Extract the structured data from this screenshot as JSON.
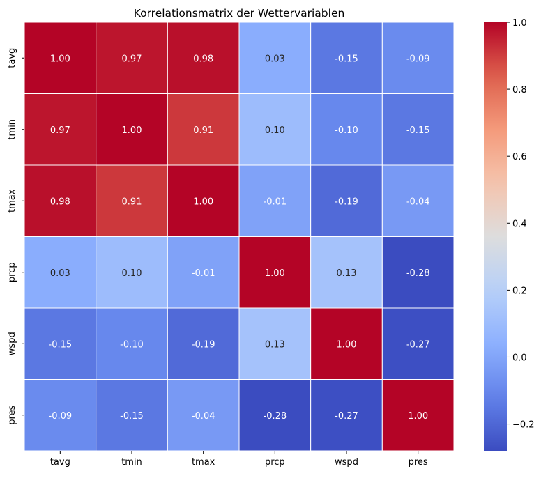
{
  "chart_data": {
    "type": "heatmap",
    "title": "Korrelationsmatrix der Wettervariablen",
    "xlabel": "",
    "ylabel": "",
    "x_categories": [
      "tavg",
      "tmin",
      "tmax",
      "prcp",
      "wspd",
      "pres"
    ],
    "y_categories": [
      "tavg",
      "tmin",
      "tmax",
      "prcp",
      "wspd",
      "pres"
    ],
    "values": [
      [
        1.0,
        0.97,
        0.98,
        0.03,
        -0.15,
        -0.09
      ],
      [
        0.97,
        1.0,
        0.91,
        0.1,
        -0.1,
        -0.15
      ],
      [
        0.98,
        0.91,
        1.0,
        -0.01,
        -0.19,
        -0.04
      ],
      [
        0.03,
        0.1,
        -0.01,
        1.0,
        0.13,
        -0.28
      ],
      [
        -0.15,
        -0.1,
        -0.19,
        0.13,
        1.0,
        -0.27
      ],
      [
        -0.09,
        -0.15,
        -0.04,
        -0.28,
        -0.27,
        1.0
      ]
    ],
    "cell_labels": [
      [
        "1.00",
        "0.97",
        "0.98",
        "0.03",
        "-0.15",
        "-0.09"
      ],
      [
        "0.97",
        "1.00",
        "0.91",
        "0.10",
        "-0.10",
        "-0.15"
      ],
      [
        "0.98",
        "0.91",
        "1.00",
        "-0.01",
        "-0.19",
        "-0.04"
      ],
      [
        "0.03",
        "0.10",
        "-0.01",
        "1.00",
        "0.13",
        "-0.28"
      ],
      [
        "-0.15",
        "-0.10",
        "-0.19",
        "0.13",
        "1.00",
        "-0.27"
      ],
      [
        "-0.09",
        "-0.15",
        "-0.04",
        "-0.28",
        "-0.27",
        "1.00"
      ]
    ],
    "colormap": "coolwarm",
    "color_range": [
      -0.28,
      1.0
    ],
    "colorbar_ticks": [
      -0.2,
      0.0,
      0.2,
      0.4,
      0.6,
      0.8,
      1.0
    ],
    "colorbar_tick_labels": [
      "−0.2",
      "0.0",
      "0.2",
      "0.4",
      "0.6",
      "0.8",
      "1.0"
    ],
    "grid": true,
    "legend": "colorbar-right",
    "colors": {
      "cell_border": "#ffffff",
      "axis": "#000000",
      "text_dark": "#262626",
      "text_light": "#ffffff"
    }
  }
}
